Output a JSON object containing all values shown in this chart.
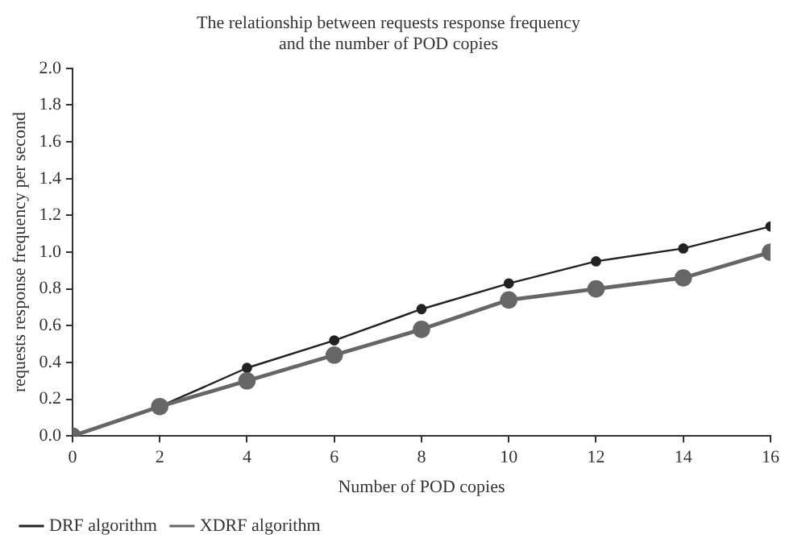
{
  "chart_data": {
    "type": "line",
    "title": "The relationship between requests response frequency\nand the number of POD copies",
    "xlabel": "Number of POD copies",
    "ylabel": "requests response frequency per second",
    "x": [
      0,
      2,
      4,
      6,
      8,
      10,
      12,
      14,
      16
    ],
    "series": [
      {
        "name": "DRF algorithm",
        "color": "#222222",
        "values": [
          0,
          0.16,
          0.37,
          0.52,
          0.69,
          0.83,
          0.95,
          1.02,
          1.14
        ]
      },
      {
        "name": "XDRF algorithm",
        "color": "#666666",
        "values": [
          0,
          0.16,
          0.3,
          0.44,
          0.58,
          0.74,
          0.8,
          0.86,
          1.0
        ]
      }
    ],
    "xlim": [
      0,
      16
    ],
    "xticks": [
      0,
      2,
      4,
      6,
      8,
      10,
      12,
      14,
      16
    ],
    "ylim": [
      0,
      2.0
    ],
    "yticks": [
      {
        "value": 0,
        "label": "0.0"
      },
      {
        "value": 0.2,
        "label": "0.2"
      },
      {
        "value": 0.4,
        "label": "0.4"
      },
      {
        "value": 0.6,
        "label": "0.6"
      },
      {
        "value": 0.8,
        "label": "0.8"
      },
      {
        "value": 1.0,
        "label": "1.0"
      },
      {
        "value": 1.2,
        "label": "1.2"
      },
      {
        "value": 1.4,
        "label": "1.4"
      },
      {
        "value": 1.6,
        "label": "1.6"
      },
      {
        "value": 1.8,
        "label": "1.8"
      },
      {
        "value": 2.0,
        "label": "2.0"
      }
    ],
    "grid": false,
    "legend": "bottom left",
    "marker": "circle",
    "line_style": "solid"
  }
}
